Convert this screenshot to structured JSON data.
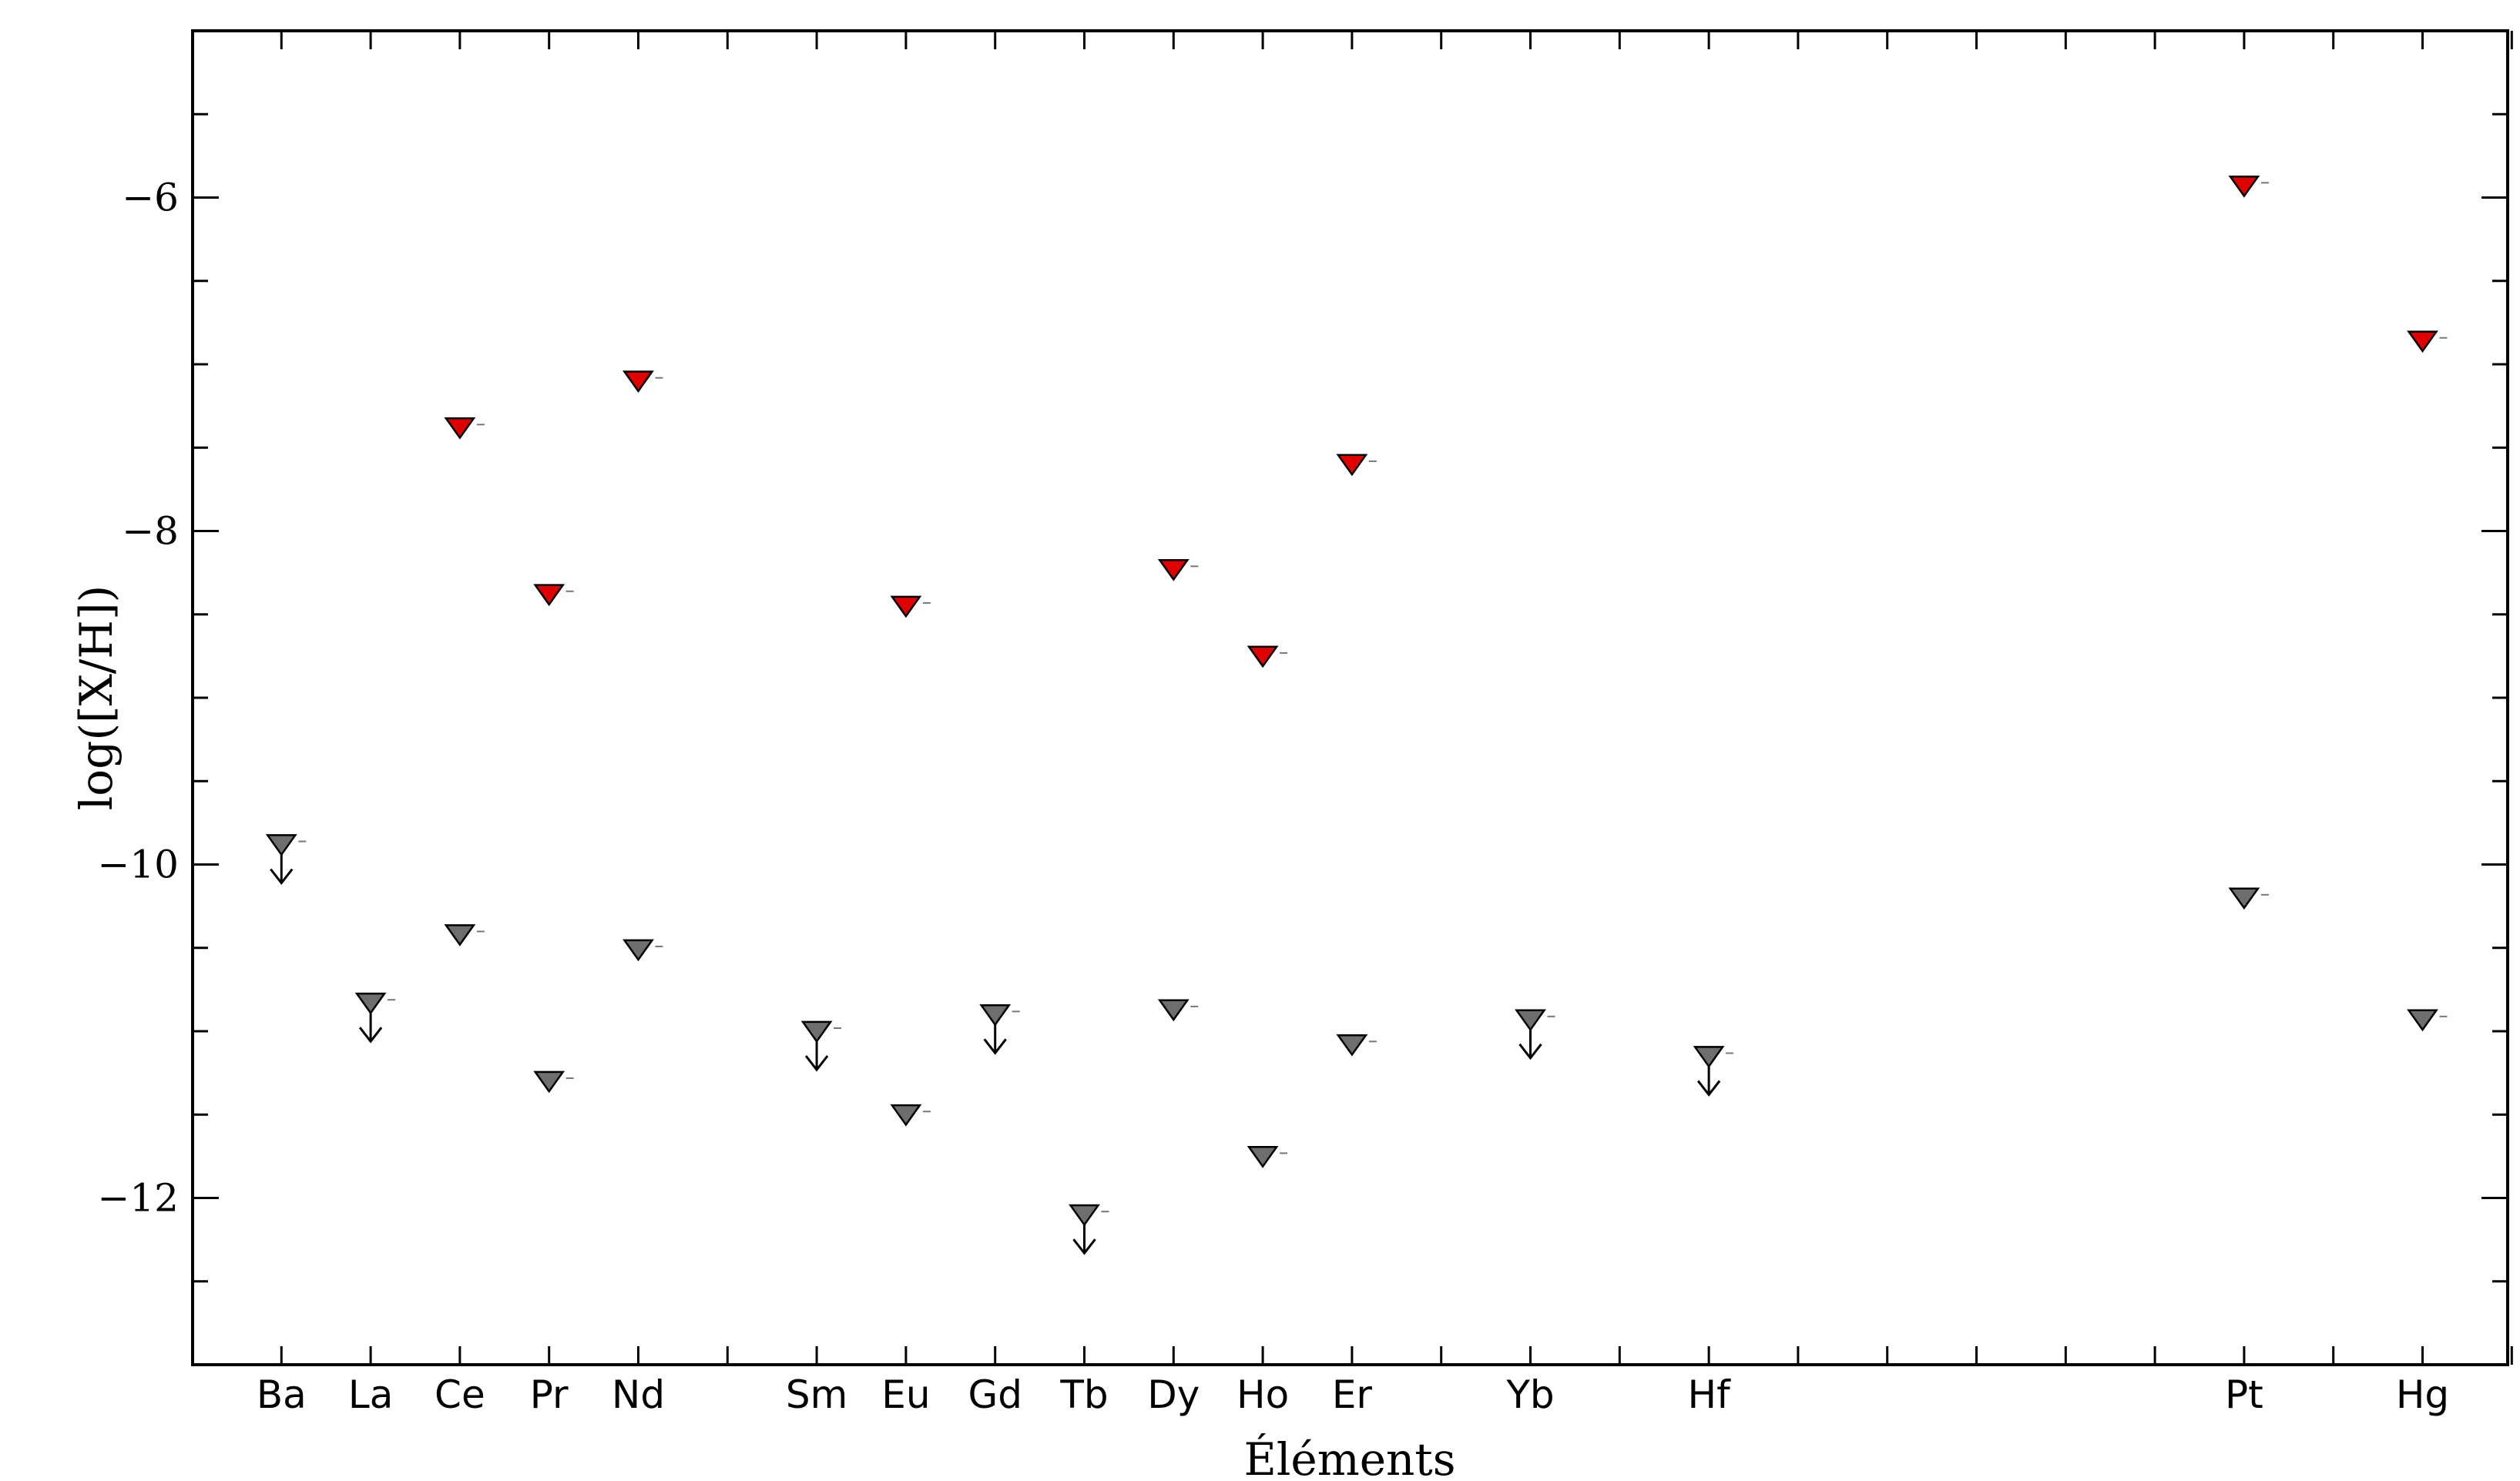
{
  "chart_data": {
    "type": "scatter",
    "title": "",
    "xlabel": "Éléments",
    "ylabel": "log([X/H])",
    "ylim": [
      -13,
      -5
    ],
    "y_ticks": [
      -6,
      -8,
      -10,
      -12
    ],
    "y_tick_labels": [
      "−6",
      "−8",
      "−10",
      "−12"
    ],
    "grid": false,
    "legend": "none",
    "marker": "downward-triangle",
    "x_positions": [
      1,
      2,
      3,
      4,
      5,
      7,
      8,
      9,
      10,
      11,
      12,
      13,
      15,
      17,
      23,
      25
    ],
    "x_tick_positions": [
      1,
      2,
      3,
      4,
      5,
      6,
      7,
      8,
      9,
      10,
      11,
      12,
      13,
      14,
      15,
      16,
      17,
      18,
      19,
      20,
      21,
      22,
      23,
      24,
      25,
      26
    ],
    "categories": [
      "Ba",
      "La",
      "Ce",
      "Pr",
      "Nd",
      "Sm",
      "Eu",
      "Gd",
      "Tb",
      "Dy",
      "Ho",
      "Er",
      "Yb",
      "Hf",
      "Pt",
      "Hg"
    ],
    "series": [
      {
        "color": "#e00000",
        "upper_limit": [
          false,
          false,
          false,
          false,
          false,
          false,
          false,
          false,
          false,
          false,
          false,
          false,
          false,
          false,
          false,
          false
        ],
        "values": [
          null,
          null,
          -7.38,
          -8.38,
          -7.1,
          null,
          -8.45,
          null,
          null,
          -8.23,
          -8.75,
          -7.6,
          null,
          null,
          -5.93,
          -6.86
        ]
      },
      {
        "color": "#6e6e6e",
        "upper_limit": [
          true,
          true,
          false,
          false,
          false,
          true,
          false,
          true,
          true,
          false,
          false,
          false,
          true,
          true,
          false,
          false
        ],
        "values": [
          -9.88,
          -10.83,
          -10.42,
          -11.3,
          -10.51,
          -11.0,
          -11.5,
          -10.9,
          -12.1,
          -10.87,
          -11.75,
          -11.08,
          -10.93,
          -11.15,
          -10.2,
          -10.93
        ]
      }
    ]
  }
}
